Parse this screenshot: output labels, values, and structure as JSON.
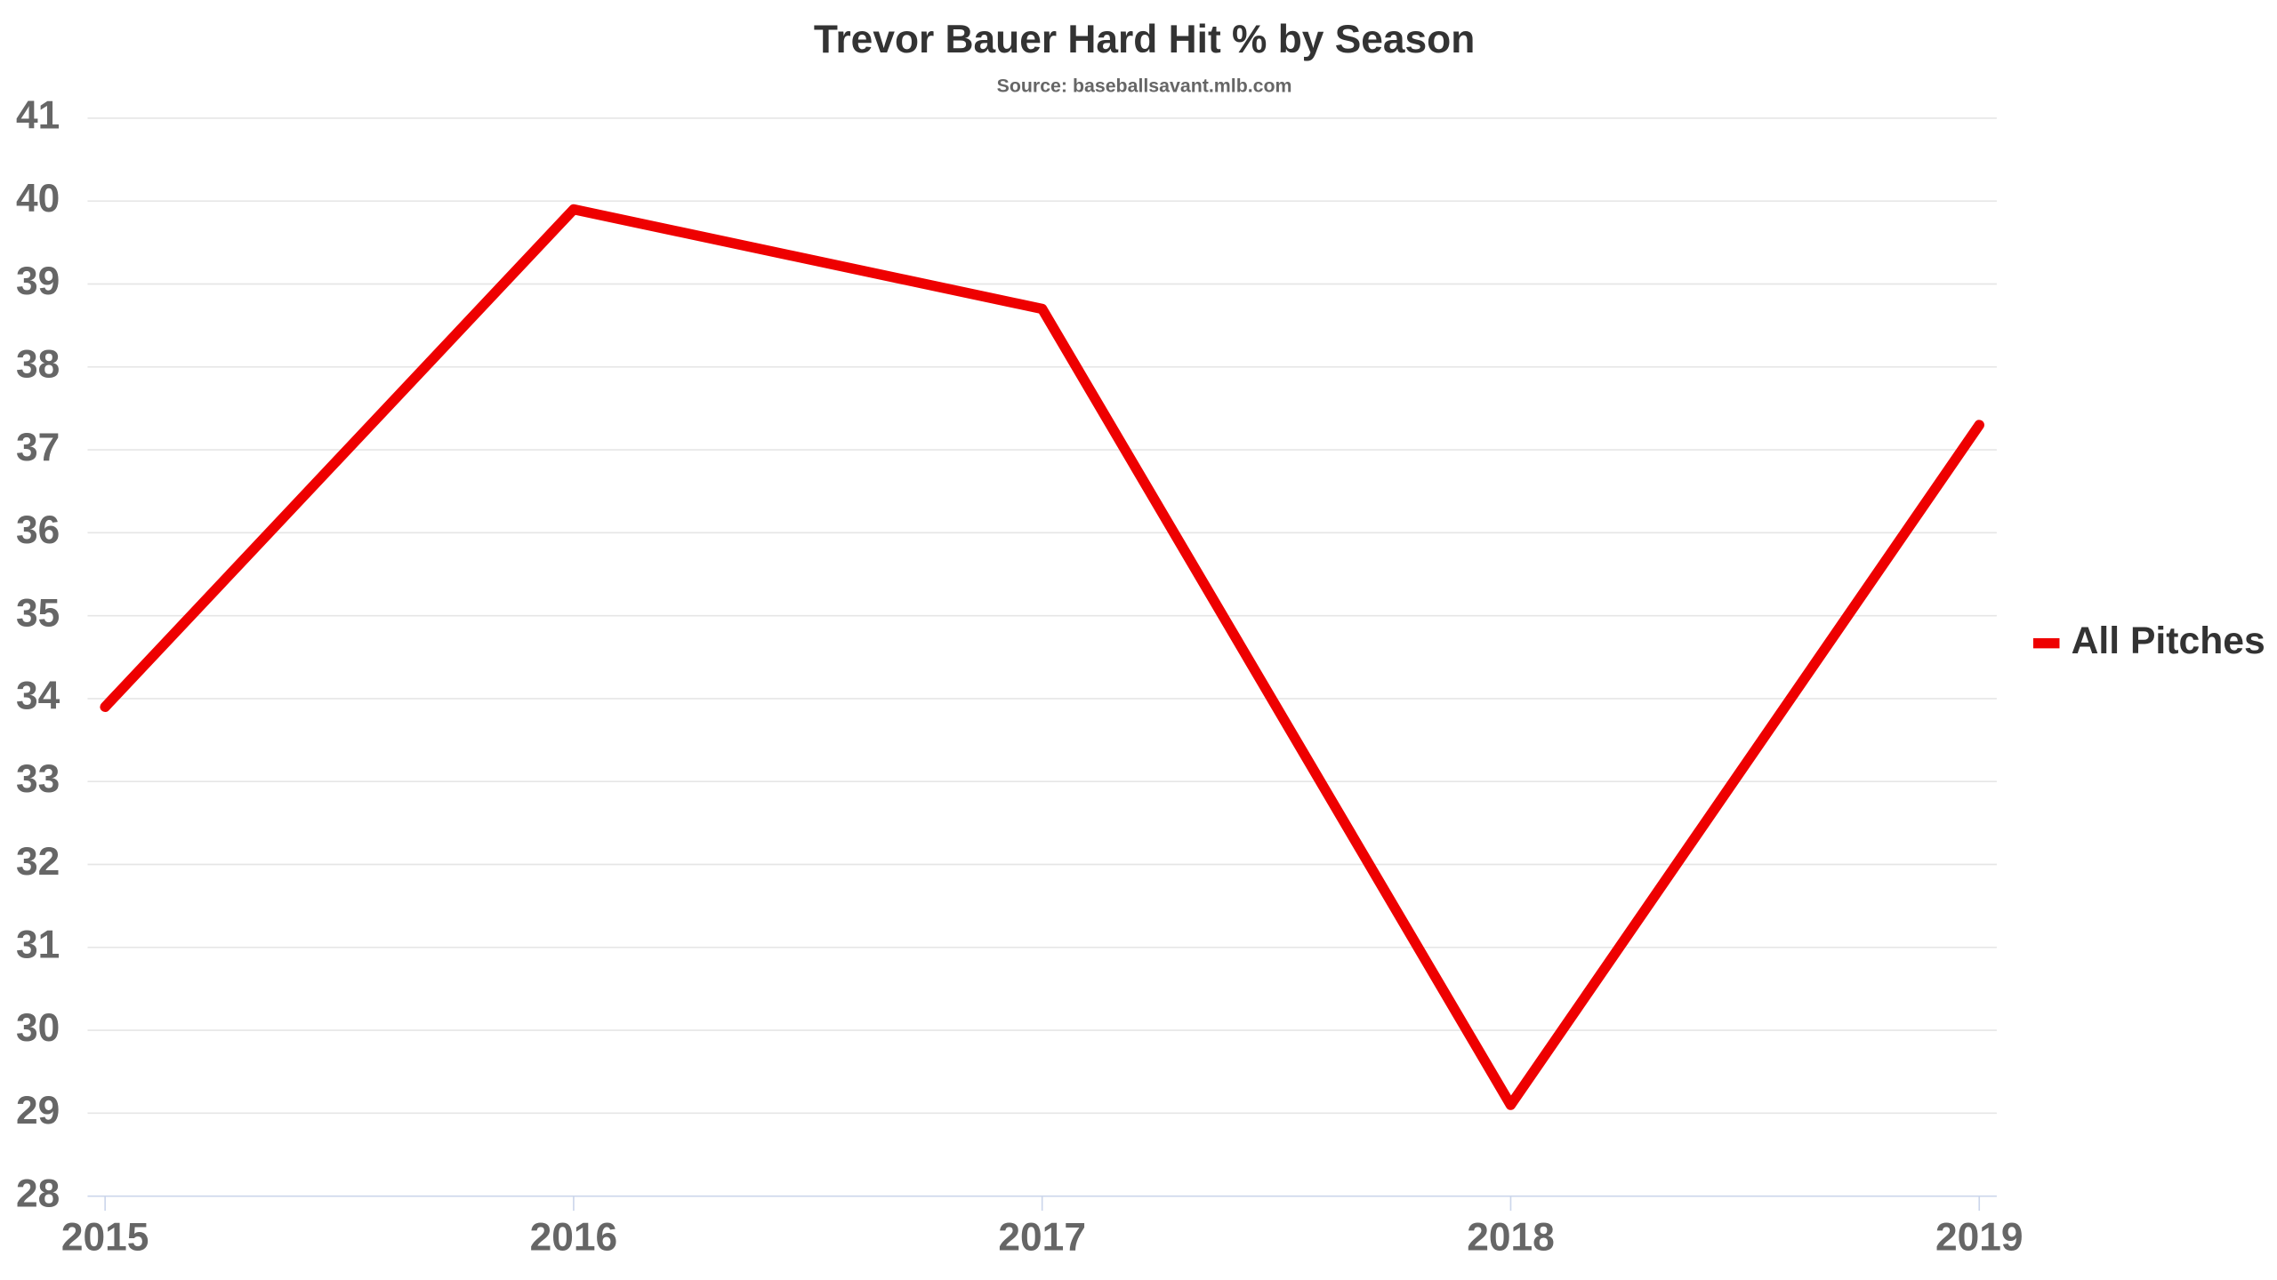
{
  "chart_data": {
    "type": "line",
    "title": "Trevor Bauer Hard Hit % by Season",
    "subtitle": "Source: baseballsavant.mlb.com",
    "categories": [
      "2015",
      "2016",
      "2017",
      "2018",
      "2019"
    ],
    "series": [
      {
        "name": "All Pitches",
        "color": "#ee0000",
        "values": [
          33.9,
          39.9,
          38.7,
          29.1,
          37.3
        ]
      }
    ],
    "ylim": [
      28,
      41
    ],
    "yticks": [
      28,
      29,
      30,
      31,
      32,
      33,
      34,
      35,
      36,
      37,
      38,
      39,
      40,
      41
    ],
    "grid": true,
    "legend": "right"
  }
}
